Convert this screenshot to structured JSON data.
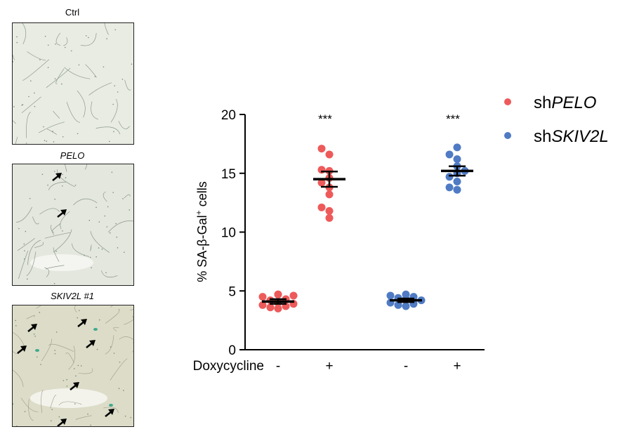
{
  "panels": [
    {
      "label": "Ctrl",
      "italic": false,
      "arrows": 0
    },
    {
      "label": "PELO",
      "italic": true,
      "arrows": 2
    },
    {
      "label": "SKIV2L #1",
      "italic": true,
      "arrows": 7
    }
  ],
  "chart_data": {
    "type": "scatter",
    "ylabel_prefix": "% SA-β-Gal",
    "ylabel_sup": "+",
    "ylabel_suffix": " cells",
    "ylim": [
      0,
      20
    ],
    "yticks": [
      0,
      5,
      10,
      15,
      20
    ],
    "xrow_label": "Doxycycline",
    "groups": [
      {
        "series": "shPELO",
        "dox": "-",
        "mean": 4.1,
        "sem": 0.2,
        "values": [
          3.5,
          3.6,
          3.7,
          3.8,
          3.9,
          4.0,
          4.1,
          4.2,
          4.3,
          4.5,
          4.6,
          4.7,
          4.7
        ]
      },
      {
        "series": "shPELO",
        "dox": "+",
        "mean": 14.5,
        "sem": 0.65,
        "significance": "***",
        "values": [
          11.2,
          11.8,
          12.1,
          13.2,
          13.8,
          14.2,
          14.6,
          15.2,
          15.3,
          16.6,
          17.1
        ]
      },
      {
        "series": "shSKIV2L",
        "dox": "-",
        "mean": 4.2,
        "sem": 0.15,
        "values": [
          3.7,
          3.8,
          3.9,
          4.0,
          4.2,
          4.3,
          4.4,
          4.5,
          4.6,
          4.7
        ]
      },
      {
        "series": "shSKIV2L",
        "dox": "+",
        "mean": 15.2,
        "sem": 0.4,
        "significance": "***",
        "values": [
          13.6,
          13.8,
          14.3,
          14.7,
          15.0,
          15.2,
          15.6,
          16.2,
          16.6,
          17.2
        ]
      }
    ],
    "series": [
      {
        "prefix": "sh",
        "gene": "PELO",
        "color": "#ee5a5a"
      },
      {
        "prefix": "sh",
        "gene": "SKIV2L",
        "color": "#4f7bc4"
      }
    ],
    "legend_position": "top-right",
    "grid": false
  }
}
